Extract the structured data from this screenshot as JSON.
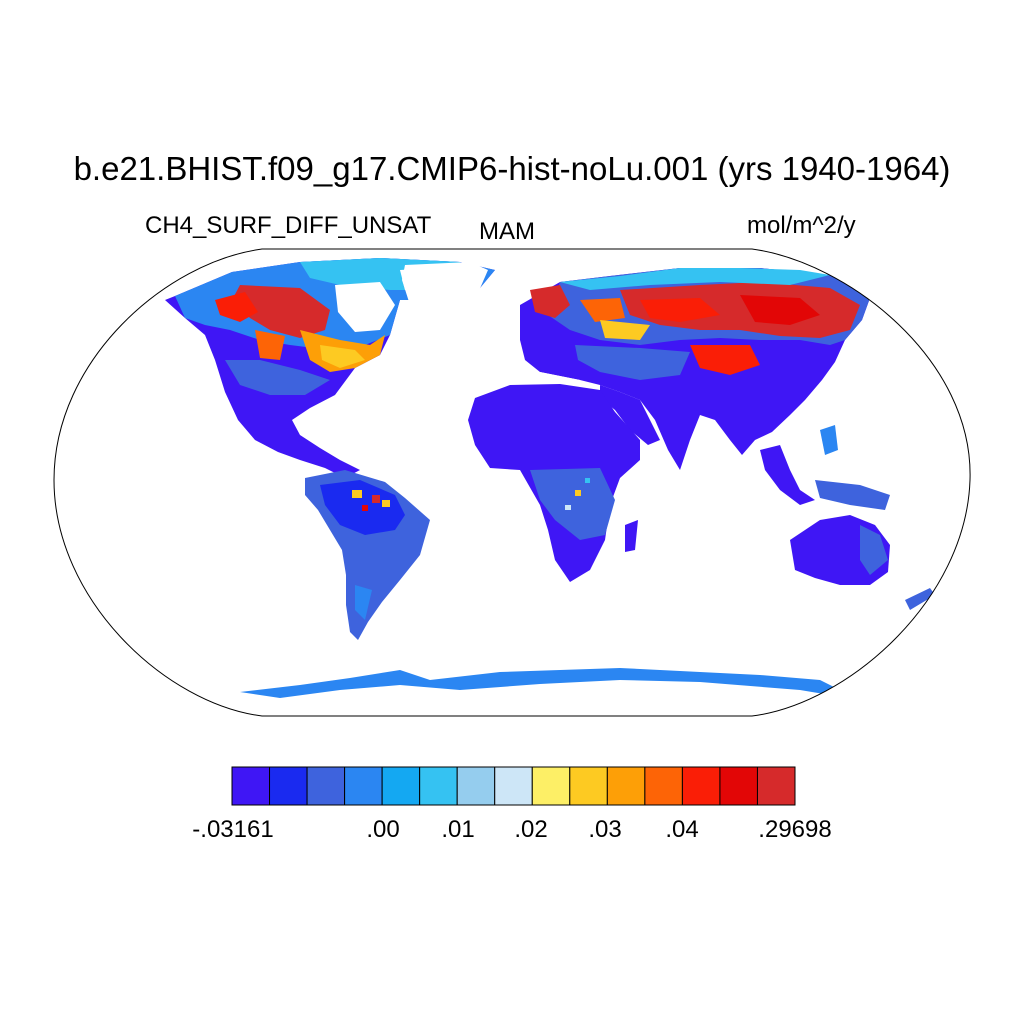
{
  "title": "b.e21.BHIST.f09_g17.CMIP6-hist-noLu.001 (yrs 1940-1964)",
  "variable": "CH4_SURF_DIFF_UNSAT",
  "season": "MAM",
  "units": "mol/m^2/y",
  "colorbar": {
    "colors": [
      "#3f16f5",
      "#1a2af0",
      "#3e63dd",
      "#2b86f2",
      "#14a8f2",
      "#35c2f2",
      "#95cdee",
      "#cde6f7",
      "#fdef66",
      "#fdca22",
      "#fd9f07",
      "#fd6406",
      "#fa1e06",
      "#e20606",
      "#d62a2b"
    ],
    "labels": [
      "-.03161",
      ".00",
      ".01",
      ".02",
      ".03",
      ".04",
      ".29698"
    ]
  },
  "map": {
    "projection": "robinson",
    "ocean_color": "#ffffff",
    "land_background_color": "#3f16f5"
  }
}
